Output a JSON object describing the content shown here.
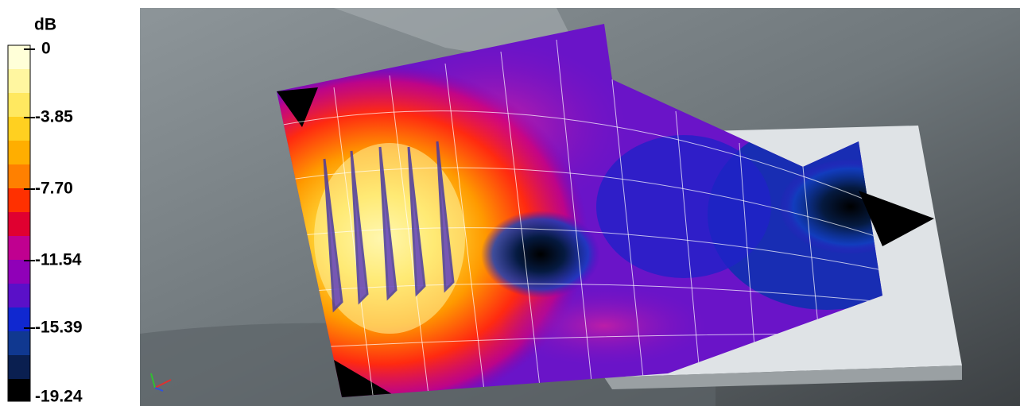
{
  "legend": {
    "title": "dB",
    "ticks": [
      "0",
      "-3.85",
      "-7.70",
      "-11.54",
      "-15.39",
      "-19.24"
    ]
  }
}
